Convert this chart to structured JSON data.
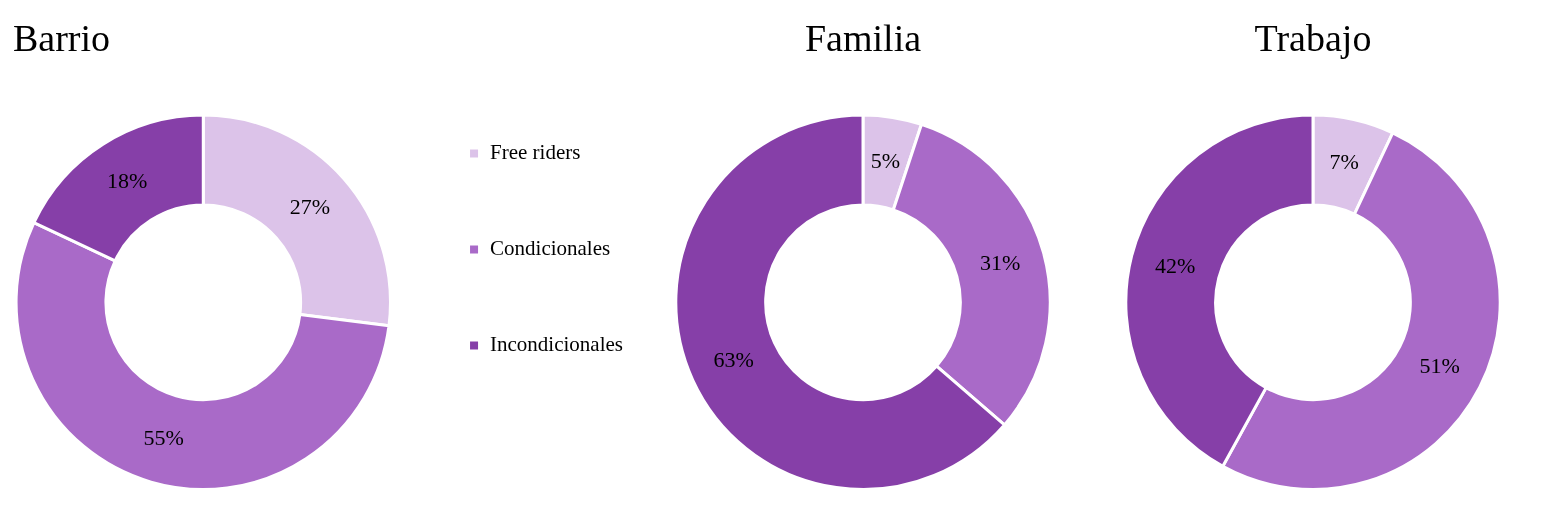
{
  "chart_data": [
    {
      "type": "donut",
      "title": "Barrio",
      "categories": [
        "Free riders",
        "Condicionales",
        "Incondicionales"
      ],
      "values": [
        27,
        55,
        18
      ],
      "colors": [
        "#dcc3e9",
        "#a96ac8",
        "#863fa8"
      ],
      "value_labels": [
        "27%",
        "55%",
        "18%"
      ],
      "legend": "right"
    },
    {
      "type": "donut",
      "title": "Familia",
      "categories": [
        null,
        null,
        null
      ],
      "values": [
        5,
        31,
        63
      ],
      "colors": [
        "#dcc3e9",
        "#a96ac8",
        "#863fa8"
      ],
      "value_labels": [
        "5%",
        "31%",
        "63%"
      ]
    },
    {
      "type": "donut",
      "title": "Trabajo",
      "categories": [
        null,
        null,
        null
      ],
      "values": [
        7,
        51,
        42
      ],
      "colors": [
        "#dcc3e9",
        "#a96ac8",
        "#863fa8"
      ],
      "value_labels": [
        "7%",
        "51%",
        "42%"
      ]
    }
  ]
}
